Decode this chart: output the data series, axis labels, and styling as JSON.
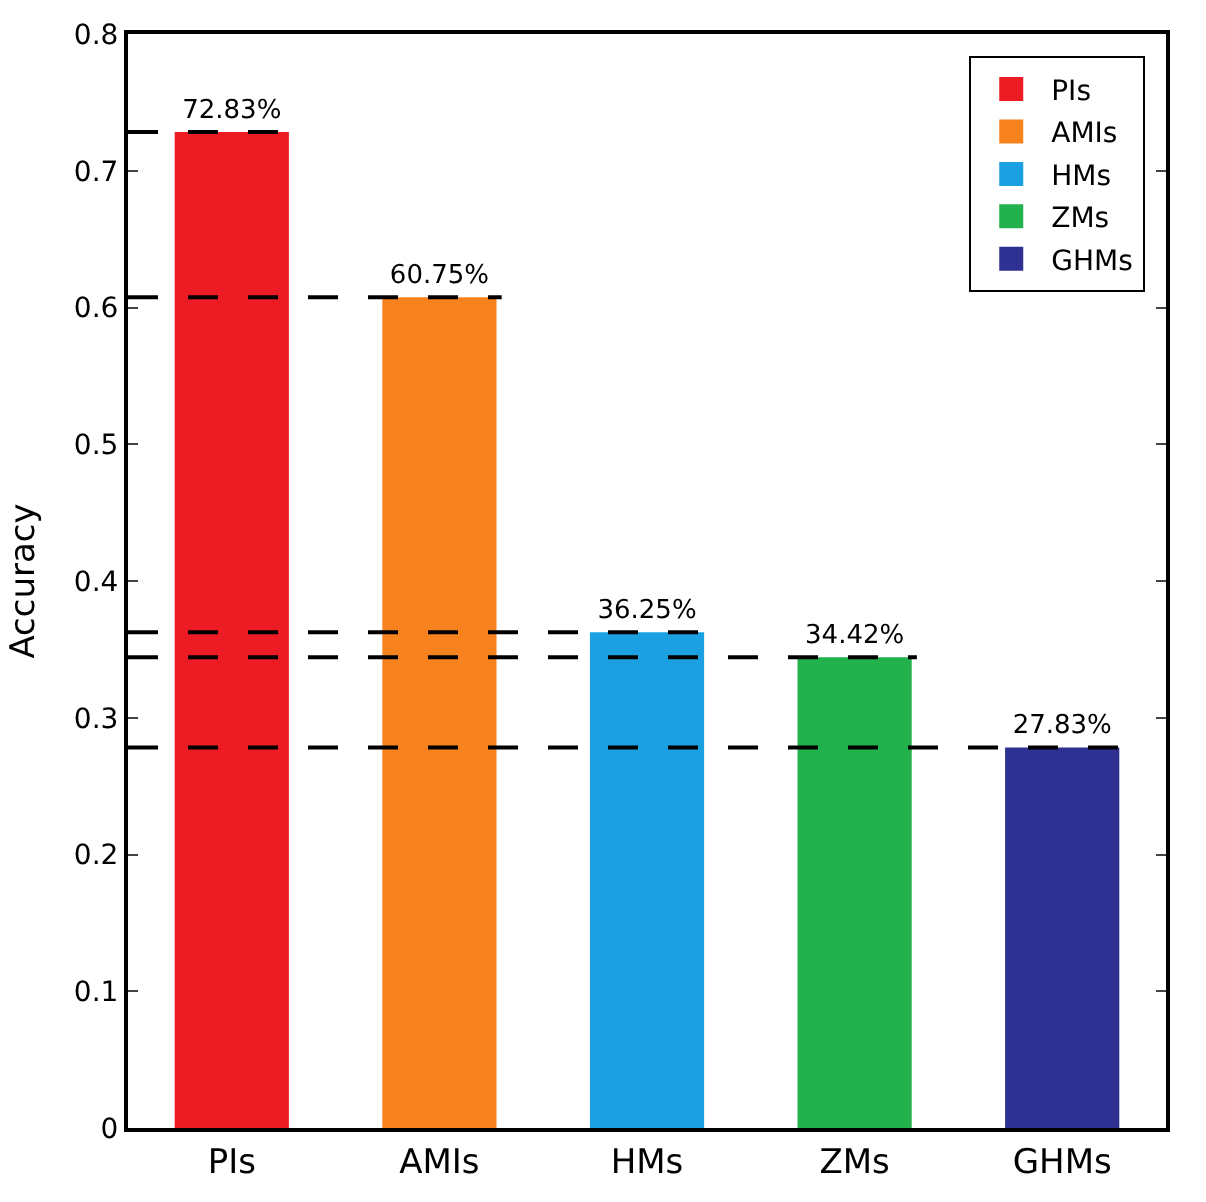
{
  "chart_data": {
    "type": "bar",
    "ylabel": "Accuracy",
    "categories": [
      "PIs",
      "AMIs",
      "HMs",
      "ZMs",
      "GHMs"
    ],
    "series": [
      {
        "name": "PIs",
        "color": "#ed1c24",
        "values": [
          0.7283,
          null,
          null,
          null,
          null
        ],
        "value_labels": [
          "72.83%",
          null,
          null,
          null,
          null
        ]
      },
      {
        "name": "AMIs",
        "color": "#f7821e",
        "values": [
          null,
          0.6075,
          null,
          null,
          null
        ],
        "value_labels": [
          null,
          "60.75%",
          null,
          null,
          null
        ]
      },
      {
        "name": "HMs",
        "color": "#1ba1e2",
        "values": [
          null,
          null,
          0.3625,
          null,
          null
        ],
        "value_labels": [
          null,
          null,
          "36.25%",
          null,
          null
        ]
      },
      {
        "name": "ZMs",
        "color": "#22b14c",
        "values": [
          null,
          null,
          null,
          0.3442,
          null
        ],
        "value_labels": [
          null,
          null,
          null,
          "34.42%",
          null
        ]
      },
      {
        "name": "GHMs",
        "color": "#2e3192",
        "values": [
          null,
          null,
          null,
          null,
          0.2783
        ],
        "value_labels": [
          null,
          null,
          null,
          null,
          "27.83%"
        ]
      }
    ],
    "ylim": [
      0,
      0.8
    ],
    "yticks": [
      0,
      0.1,
      0.2,
      0.3,
      0.4,
      0.5,
      0.6,
      0.7,
      0.8
    ],
    "ref_lines": [
      {
        "axis": "y",
        "value": 0.7283,
        "color": "#000000",
        "line_style": "dashed"
      },
      {
        "axis": "y",
        "value": 0.6075,
        "color": "#000000",
        "line_style": "dashed"
      },
      {
        "axis": "y",
        "value": 0.3625,
        "color": "#000000",
        "line_style": "dashed"
      },
      {
        "axis": "y",
        "value": 0.3442,
        "color": "#000000",
        "line_style": "dashed"
      },
      {
        "axis": "y",
        "value": 0.2783,
        "color": "#000000",
        "line_style": "dashed"
      }
    ],
    "legend": "top right"
  }
}
